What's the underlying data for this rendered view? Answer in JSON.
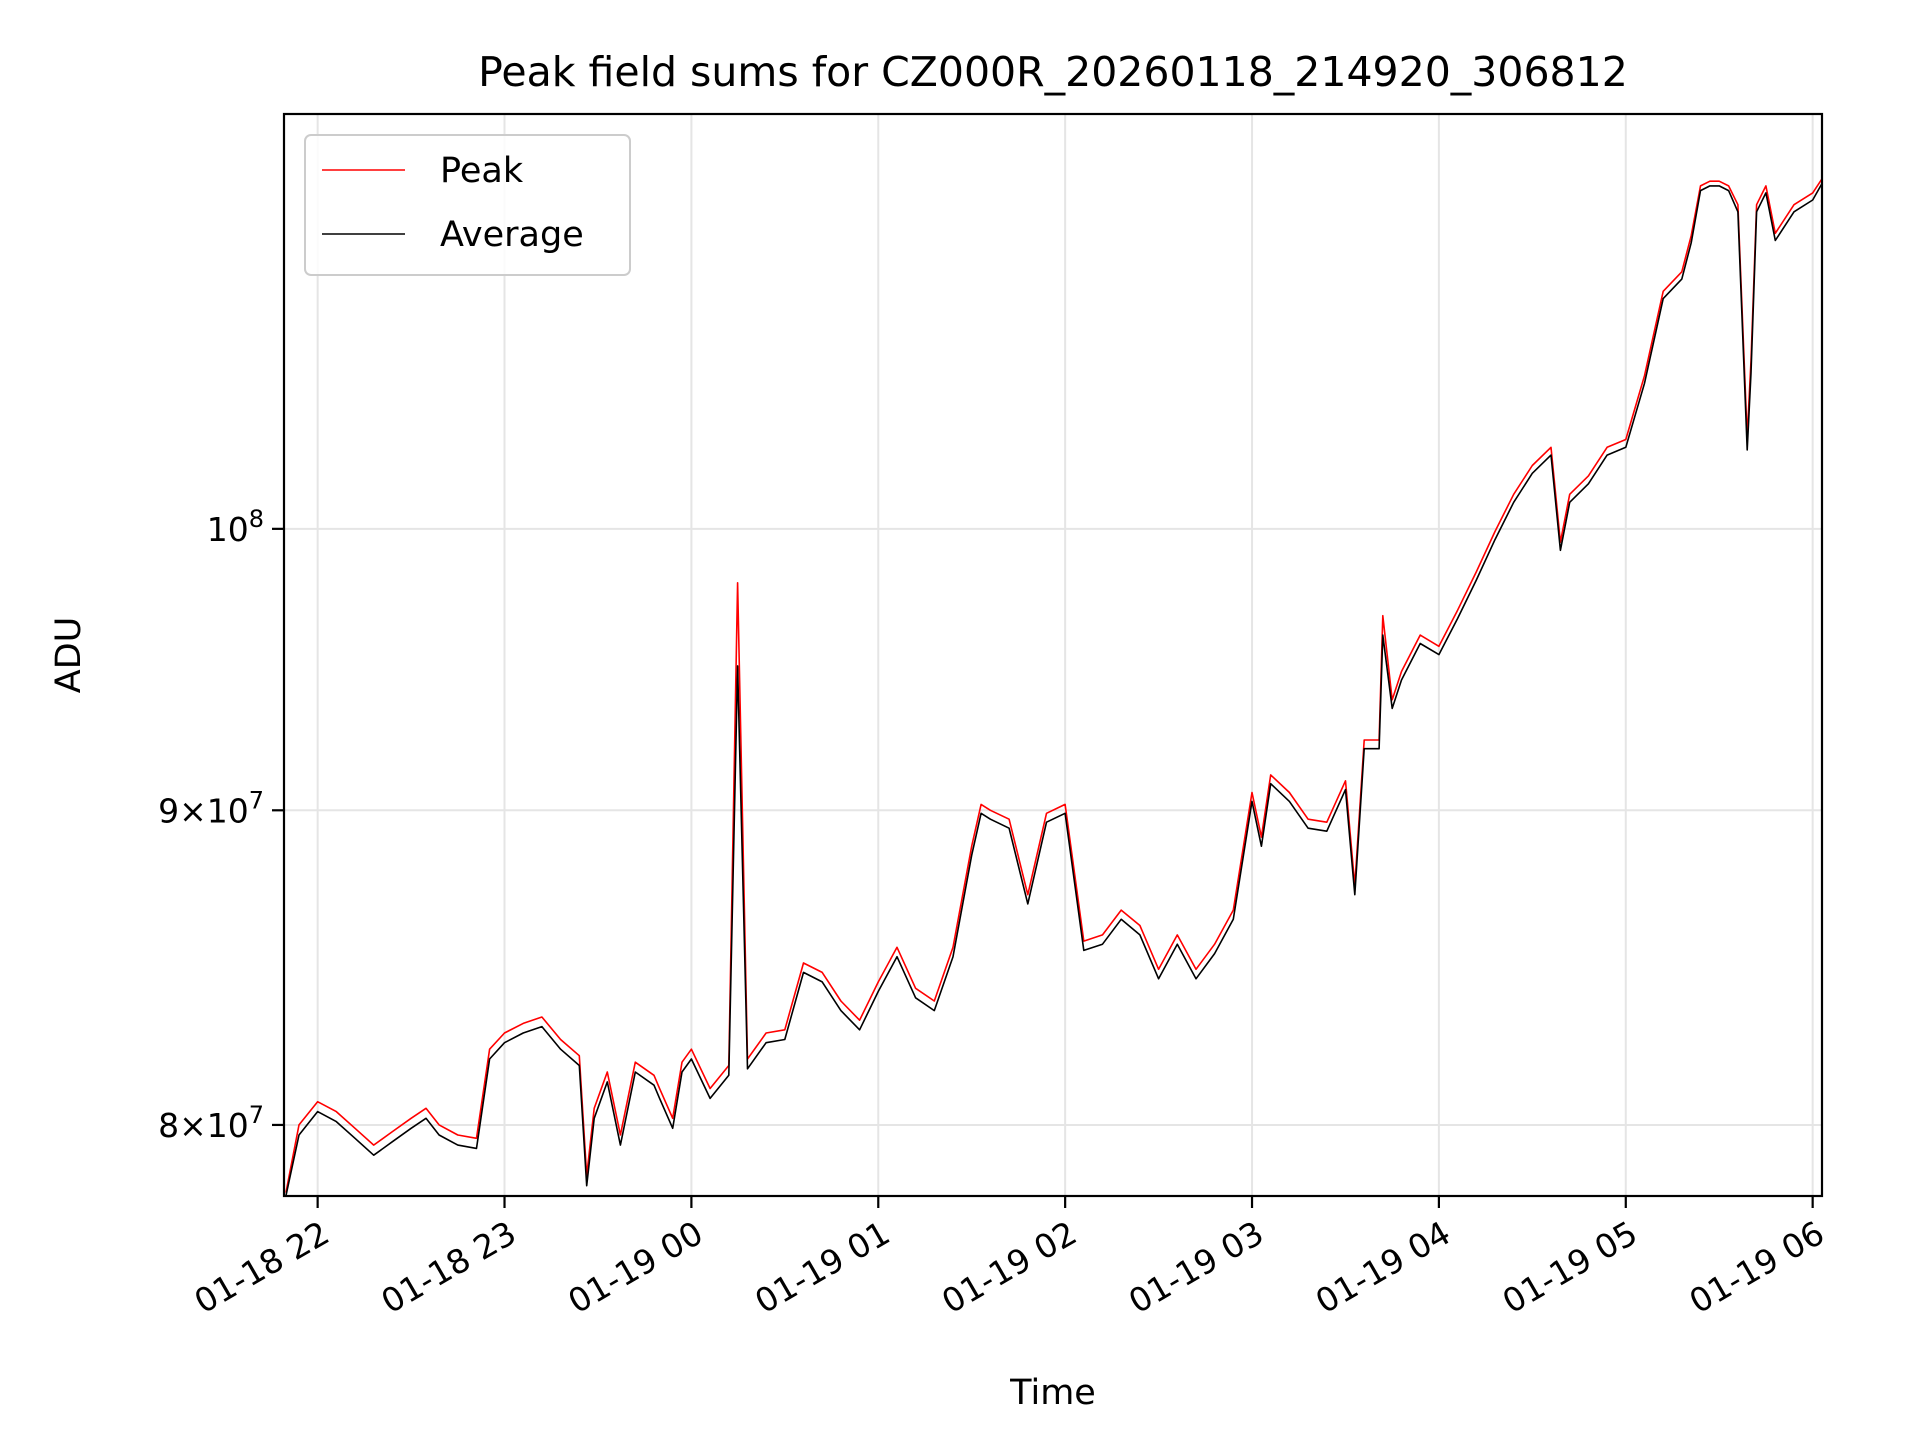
{
  "chart_data": {
    "type": "line",
    "title": "Peak field sums for CZ000R_20260118_214920_306812",
    "xlabel": "Time",
    "ylabel": "ADU",
    "yscale": "log",
    "xlim_hours": [
      -2.18,
      6.05
    ],
    "ylim": [
      77900000,
      116800000
    ],
    "grid": true,
    "legend_position": "upper-left",
    "x_ticks": [
      {
        "hour": -2,
        "label": "01-18 22"
      },
      {
        "hour": -1,
        "label": "01-18 23"
      },
      {
        "hour": 0,
        "label": "01-19 00"
      },
      {
        "hour": 1,
        "label": "01-19 01"
      },
      {
        "hour": 2,
        "label": "01-19 02"
      },
      {
        "hour": 3,
        "label": "01-19 03"
      },
      {
        "hour": 4,
        "label": "01-19 04"
      },
      {
        "hour": 5,
        "label": "01-19 05"
      },
      {
        "hour": 6,
        "label": "01-19 06"
      }
    ],
    "y_ticks": [
      {
        "value": 80000000,
        "mant": "8",
        "exp": "7"
      },
      {
        "value": 90000000,
        "mant": "9",
        "exp": "7"
      },
      {
        "value": 100000000,
        "mant": "",
        "exp": "8"
      }
    ],
    "series": [
      {
        "name": "Peak",
        "color": "#ff0000",
        "x": [
          -2.17,
          -2.1,
          -2.0,
          -1.9,
          -1.8,
          -1.7,
          -1.6,
          -1.5,
          -1.42,
          -1.35,
          -1.25,
          -1.15,
          -1.08,
          -1.0,
          -0.9,
          -0.8,
          -0.7,
          -0.6,
          -0.56,
          -0.52,
          -0.45,
          -0.38,
          -0.3,
          -0.2,
          -0.17,
          -0.1,
          -0.05,
          0.0,
          0.1,
          0.2,
          0.247,
          0.3,
          0.4,
          0.5,
          0.6,
          0.7,
          0.8,
          0.9,
          1.0,
          1.1,
          1.2,
          1.3,
          1.4,
          1.5,
          1.55,
          1.6,
          1.7,
          1.8,
          1.9,
          2.0,
          2.1,
          2.2,
          2.3,
          2.4,
          2.5,
          2.6,
          2.7,
          2.8,
          2.9,
          3.0,
          3.05,
          3.1,
          3.2,
          3.3,
          3.4,
          3.5,
          3.55,
          3.6,
          3.68,
          3.7,
          3.75,
          3.8,
          3.9,
          4.0,
          4.1,
          4.2,
          4.3,
          4.4,
          4.5,
          4.6,
          4.65,
          4.7,
          4.8,
          4.9,
          5.0,
          5.1,
          5.2,
          5.3,
          5.35,
          5.4,
          5.45,
          5.5,
          5.55,
          5.6,
          5.65,
          5.67,
          5.7,
          5.75,
          5.8,
          5.9,
          6.0,
          6.05
        ],
        "y": [
          78000000,
          80000000,
          80700000,
          80400000,
          79900000,
          79400000,
          79800000,
          80200000,
          80500000,
          80000000,
          79700000,
          79600000,
          82300000,
          82800000,
          83100000,
          83300000,
          82600000,
          82100000,
          78500000,
          80500000,
          81600000,
          79700000,
          81900000,
          81500000,
          81100000,
          80200000,
          81900000,
          82300000,
          81100000,
          81800000,
          98000000,
          82000000,
          82800000,
          82900000,
          85000000,
          84700000,
          83800000,
          83200000,
          84400000,
          85500000,
          84200000,
          83800000,
          85500000,
          88800000,
          90200000,
          90000000,
          89700000,
          87200000,
          89900000,
          90200000,
          85700000,
          85900000,
          86700000,
          86200000,
          84800000,
          85900000,
          84800000,
          85600000,
          86700000,
          90600000,
          89100000,
          91200000,
          90600000,
          89700000,
          89600000,
          91000000,
          87500000,
          92400000,
          92400000,
          96800000,
          93800000,
          94800000,
          96100000,
          95700000,
          97000000,
          98400000,
          99900000,
          101300000,
          102400000,
          103100000,
          99500000,
          101300000,
          102000000,
          103100000,
          103400000,
          105900000,
          109300000,
          110100000,
          111600000,
          113700000,
          113900000,
          113900000,
          113700000,
          112900000,
          103500000,
          106500000,
          112900000,
          113700000,
          111700000,
          112900000,
          113400000,
          114000000
        ]
      },
      {
        "name": "Average",
        "color": "#000000",
        "x": [
          -2.17,
          -2.1,
          -2.0,
          -1.9,
          -1.8,
          -1.7,
          -1.6,
          -1.5,
          -1.42,
          -1.35,
          -1.25,
          -1.15,
          -1.08,
          -1.0,
          -0.9,
          -0.8,
          -0.7,
          -0.6,
          -0.56,
          -0.52,
          -0.45,
          -0.38,
          -0.3,
          -0.2,
          -0.17,
          -0.1,
          -0.05,
          0.0,
          0.1,
          0.2,
          0.247,
          0.3,
          0.4,
          0.5,
          0.6,
          0.7,
          0.8,
          0.9,
          1.0,
          1.1,
          1.2,
          1.3,
          1.4,
          1.5,
          1.55,
          1.6,
          1.7,
          1.8,
          1.9,
          2.0,
          2.1,
          2.2,
          2.3,
          2.4,
          2.5,
          2.6,
          2.7,
          2.8,
          2.9,
          3.0,
          3.05,
          3.1,
          3.2,
          3.3,
          3.4,
          3.5,
          3.55,
          3.6,
          3.68,
          3.7,
          3.75,
          3.8,
          3.9,
          4.0,
          4.1,
          4.2,
          4.3,
          4.4,
          4.5,
          4.6,
          4.65,
          4.7,
          4.8,
          4.9,
          5.0,
          5.1,
          5.2,
          5.3,
          5.35,
          5.4,
          5.45,
          5.5,
          5.55,
          5.6,
          5.65,
          5.67,
          5.7,
          5.75,
          5.8,
          5.9,
          6.0,
          6.05
        ],
        "y": [
          77900000,
          79700000,
          80400000,
          80100000,
          79600000,
          79100000,
          79500000,
          79900000,
          80200000,
          79700000,
          79400000,
          79300000,
          82000000,
          82500000,
          82800000,
          83000000,
          82300000,
          81800000,
          78200000,
          80200000,
          81300000,
          79400000,
          81600000,
          81200000,
          80800000,
          79900000,
          81600000,
          82000000,
          80800000,
          81500000,
          95000000,
          81700000,
          82500000,
          82600000,
          84700000,
          84400000,
          83500000,
          82900000,
          84100000,
          85200000,
          83900000,
          83500000,
          85200000,
          88500000,
          89900000,
          89700000,
          89400000,
          86900000,
          89600000,
          89900000,
          85400000,
          85600000,
          86400000,
          85900000,
          84500000,
          85600000,
          84500000,
          85300000,
          86400000,
          90300000,
          88800000,
          90900000,
          90300000,
          89400000,
          89300000,
          90700000,
          87200000,
          92100000,
          92100000,
          96100000,
          93500000,
          94500000,
          95800000,
          95400000,
          96700000,
          98100000,
          99600000,
          101000000,
          102100000,
          102800000,
          99200000,
          101000000,
          101700000,
          102800000,
          103100000,
          105600000,
          109000000,
          109800000,
          111300000,
          113500000,
          113700000,
          113700000,
          113500000,
          112600000,
          103000000,
          106000000,
          112600000,
          113400000,
          111400000,
          112600000,
          113100000,
          113800000
        ]
      }
    ]
  }
}
